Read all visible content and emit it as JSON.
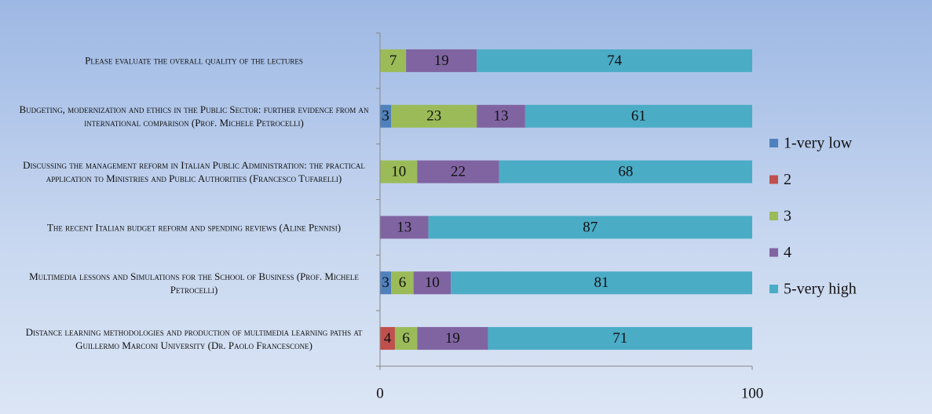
{
  "chart_data": {
    "type": "stacked_barh",
    "categories": [
      "Please evaluate the overall quality of the lectures",
      "Budgeting, modernization and ethics in the Public Sector: further evidence from an international comparison (Prof. Michele Petrocelli)",
      "Discussing the management reform in Italian Public Administration: the practical application to Ministries and Public Authorities (Francesco Tufarelli)",
      "The recent Italian budget reform and spending reviews (Aline Pennisi)",
      "Multimedia lessons and Simulations for the School of Business (Prof. Michele Petrocelli)",
      "Distance learning methodologies and production of multimedia learning paths at Guillermo Marconi University (Dr. Paolo Francescone)"
    ],
    "series": [
      {
        "name": "1-very low",
        "color": "#4f81bd",
        "values": [
          null,
          3,
          null,
          null,
          3,
          null
        ]
      },
      {
        "name": "2",
        "color": "#c0504d",
        "values": [
          null,
          null,
          null,
          null,
          null,
          4
        ]
      },
      {
        "name": "3",
        "color": "#9bbb59",
        "values": [
          7,
          23,
          10,
          null,
          6,
          6
        ]
      },
      {
        "name": "4",
        "color": "#8064a2",
        "values": [
          19,
          13,
          22,
          13,
          10,
          19
        ]
      },
      {
        "name": "5-very high",
        "color": "#4bacc6",
        "values": [
          74,
          61,
          68,
          87,
          81,
          71
        ]
      }
    ],
    "xlim": [
      0,
      100
    ],
    "xticks": [
      0,
      100
    ],
    "legend": "right"
  }
}
